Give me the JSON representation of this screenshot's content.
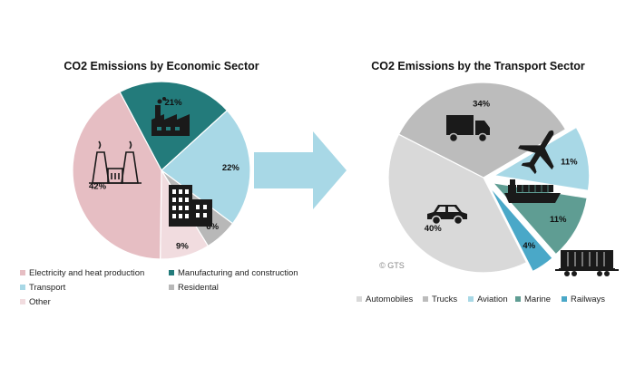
{
  "chart_data": [
    {
      "type": "pie",
      "title": "CO2 Emissions by Economic Sector",
      "slices": [
        {
          "name": "Manufacturing and construction",
          "value": 21,
          "label": "21%",
          "color": "#237b7b"
        },
        {
          "name": "Transport",
          "value": 22,
          "label": "22%",
          "color": "#a8d8e6"
        },
        {
          "name": "Residental",
          "value": 6,
          "label": "6%",
          "color": "#b8b8b8"
        },
        {
          "name": "Other",
          "value": 9,
          "label": "9%",
          "color": "#f1dcdf"
        },
        {
          "name": "Electricity and heat production",
          "value": 42,
          "label": "42%",
          "color": "#e6bec3"
        }
      ],
      "legend": [
        {
          "label": "Electricity and heat production",
          "color": "#e6bec3"
        },
        {
          "label": "Manufacturing and construction",
          "color": "#237b7b"
        },
        {
          "label": "Transport",
          "color": "#a8d8e6"
        },
        {
          "label": "Residental",
          "color": "#b8b8b8"
        },
        {
          "label": "Other",
          "color": "#f1dcdf"
        }
      ],
      "legend_placement": "bottom"
    },
    {
      "type": "pie",
      "title": "CO2 Emissions by the Transport Sector",
      "slices": [
        {
          "name": "Aviation",
          "value": 11,
          "label": "11%",
          "color": "#a8d8e6"
        },
        {
          "name": "Marine",
          "value": 11,
          "label": "11%",
          "color": "#5f9d93"
        },
        {
          "name": "Railways",
          "value": 4,
          "label": "4%",
          "color": "#4aa8c8"
        },
        {
          "name": "Automobiles",
          "value": 40,
          "label": "40%",
          "color": "#d9d9d9"
        },
        {
          "name": "Trucks",
          "value": 34,
          "label": "34%",
          "color": "#bcbcbc"
        }
      ],
      "legend": [
        {
          "label": "Automobiles",
          "color": "#d9d9d9"
        },
        {
          "label": "Trucks",
          "color": "#bcbcbc"
        },
        {
          "label": "Aviation",
          "color": "#a8d8e6"
        },
        {
          "label": "Marine",
          "color": "#5f9d93"
        },
        {
          "label": "Railways",
          "color": "#4aa8c8"
        }
      ],
      "legend_placement": "bottom"
    }
  ],
  "watermark": "© GTS",
  "arrow_color": "#a8d8e6",
  "icons": [
    "power-plant-icon",
    "factory-icon",
    "buildings-icon",
    "truck-icon",
    "airplane-icon",
    "ship-icon",
    "car-icon",
    "train-wagon-icon"
  ]
}
